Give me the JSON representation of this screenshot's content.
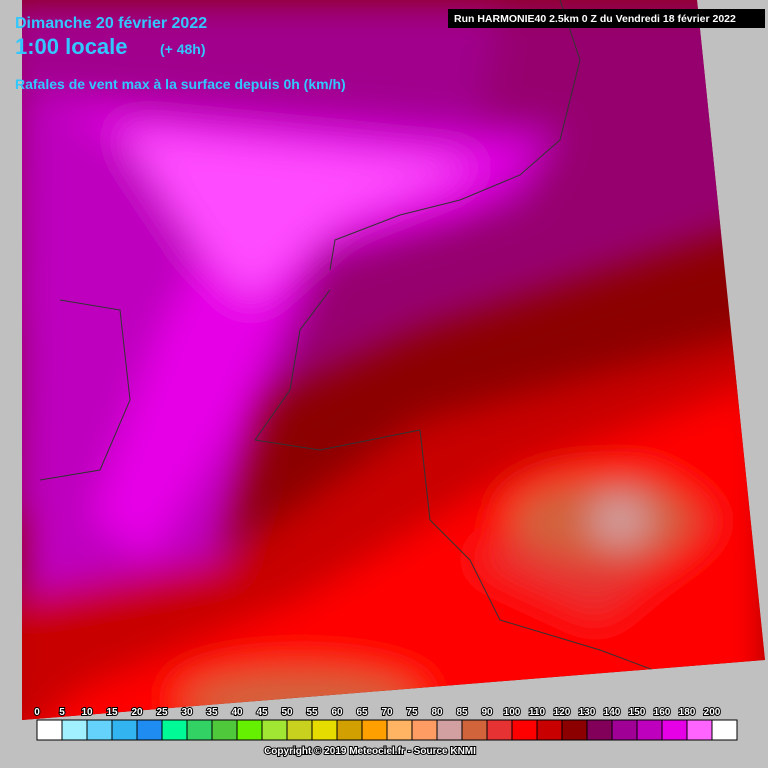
{
  "header": {
    "date": "Dimanche 20 février 2022",
    "time": "1:00 locale",
    "lead": "(+ 48h)",
    "subtitle": "Rafales de vent max à la surface depuis 0h (km/h)",
    "run": "Run HARMONIE40 2.5km 0 Z du Vendredi 18 février 2022"
  },
  "legend": {
    "values": [
      0,
      5,
      10,
      15,
      20,
      25,
      30,
      35,
      40,
      45,
      50,
      55,
      60,
      65,
      70,
      75,
      80,
      85,
      90,
      100,
      110,
      120,
      130,
      140,
      150,
      160,
      180,
      200
    ],
    "colors": [
      "#ffffff",
      "#a0f0ff",
      "#64d2fa",
      "#32b4f0",
      "#1e8cf0",
      "#00fa96",
      "#32d264",
      "#50c83c",
      "#64f000",
      "#a0e632",
      "#c8d21e",
      "#e6dc00",
      "#d2a000",
      "#ffa000",
      "#ffb464",
      "#ff9c64",
      "#d2a0a0",
      "#d2643c",
      "#e63232",
      "#ff0000",
      "#c80000",
      "#8c0000",
      "#82005a",
      "#a00096",
      "#be00be",
      "#e600e6",
      "#ff64ff",
      "#ffffff"
    ]
  },
  "footer": {
    "copyright": "Copyright © 2019 Meteociel.fr - Source KNMI"
  }
}
